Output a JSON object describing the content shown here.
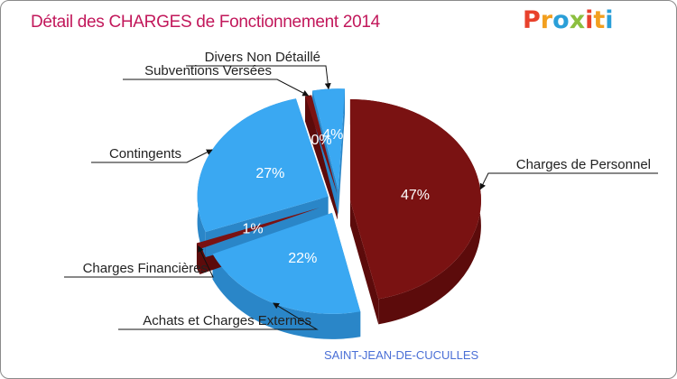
{
  "title": "Détail des CHARGES de Fonctionnement 2014",
  "logo": {
    "letters": [
      "P",
      "r",
      "o",
      "x",
      "i",
      "t",
      "i"
    ],
    "colors": [
      "#e8412c",
      "#f29f1f",
      "#2a9fd8",
      "#8cbf3f",
      "#e8412c",
      "#f29f1f",
      "#2a9fd8"
    ]
  },
  "commune": "SAINT-JEAN-DE-CUCULLES",
  "colors": {
    "blue": "#3aa8f2",
    "blue_dark": "#2a86c8",
    "red": "#7a1212",
    "red_dark": "#5c0b0b",
    "title": "#c2185b"
  },
  "chart_data": {
    "type": "pie",
    "title": "Détail des CHARGES de Fonctionnement 2014",
    "slices": [
      {
        "label": "Charges de Personnel",
        "value": 47,
        "pct_label": "47%",
        "color": "#7a1212"
      },
      {
        "label": "Achats et Charges Externes",
        "value": 22,
        "pct_label": "22%",
        "color": "#3aa8f2"
      },
      {
        "label": "Charges Financières",
        "value": 1,
        "pct_label": "1%",
        "color": "#7a1212"
      },
      {
        "label": "Contingents",
        "value": 27,
        "pct_label": "27%",
        "color": "#3aa8f2"
      },
      {
        "label": "Subventions Versées",
        "value": 0,
        "pct_label": "0%",
        "color": "#7a1212"
      },
      {
        "label": "Divers Non Détaillé",
        "value": 4,
        "pct_label": "4%",
        "color": "#3aa8f2"
      }
    ]
  }
}
